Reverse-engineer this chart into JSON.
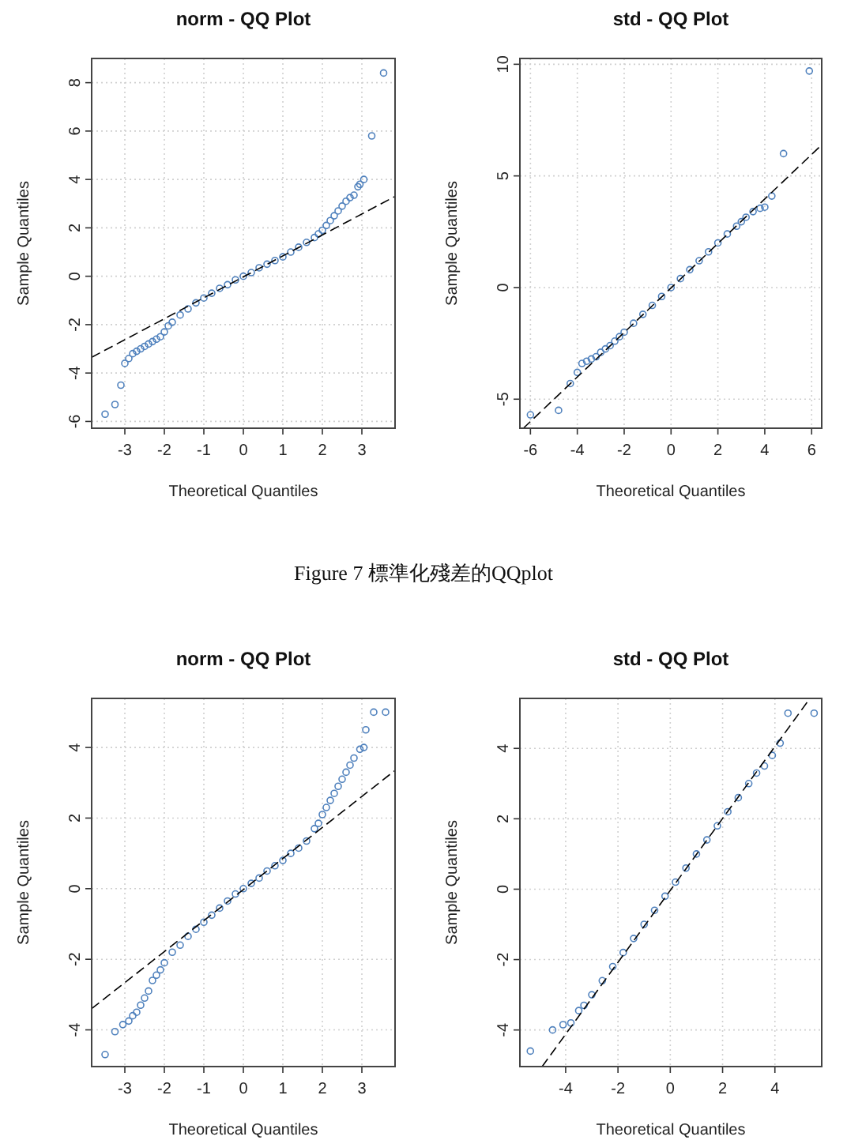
{
  "chart_data": [
    {
      "type": "scatter",
      "title": "norm - QQ Plot",
      "xlabel": "Theoretical Quantiles",
      "ylabel": "Sample Quantiles",
      "xlim": [
        -3.84,
        3.84
      ],
      "ylim": [
        -6.28,
        9.0
      ],
      "xticks": [
        -3,
        -2,
        -1,
        0,
        1,
        2,
        3
      ],
      "yticks": [
        -6,
        -4,
        -2,
        0,
        2,
        4,
        6,
        8
      ],
      "grid": true,
      "marker": "circle",
      "annotations": [
        "Figure 7 標準化殘差的QQplot"
      ],
      "series": [
        {
          "type": "scatter",
          "color": "#4f81bd",
          "x": [
            -3.5,
            -3.25,
            -3.1,
            -3.0,
            -2.9,
            -2.8,
            -2.7,
            -2.6,
            -2.5,
            -2.4,
            -2.3,
            -2.2,
            -2.1,
            -2.0,
            -1.9,
            -1.8,
            -1.6,
            -1.4,
            -1.2,
            -1.0,
            -0.8,
            -0.6,
            -0.4,
            -0.2,
            0,
            0.2,
            0.4,
            0.6,
            0.8,
            1.0,
            1.2,
            1.4,
            1.6,
            1.8,
            1.9,
            2.0,
            2.1,
            2.2,
            2.3,
            2.4,
            2.5,
            2.6,
            2.7,
            2.8,
            2.9,
            2.95,
            3.05,
            3.25,
            3.55
          ],
          "values": [
            -5.7,
            -5.3,
            -4.5,
            -3.6,
            -3.4,
            -3.2,
            -3.1,
            -3.0,
            -2.9,
            -2.8,
            -2.7,
            -2.6,
            -2.5,
            -2.3,
            -2.05,
            -1.9,
            -1.6,
            -1.35,
            -1.1,
            -0.9,
            -0.7,
            -0.5,
            -0.35,
            -0.15,
            0,
            0.15,
            0.35,
            0.5,
            0.65,
            0.8,
            1.0,
            1.2,
            1.4,
            1.6,
            1.75,
            1.9,
            2.1,
            2.3,
            2.5,
            2.7,
            2.9,
            3.1,
            3.25,
            3.35,
            3.7,
            3.8,
            4.0,
            5.8,
            8.4
          ]
        },
        {
          "type": "line",
          "color": "#000000",
          "line_style": "dashed",
          "marker": "none",
          "x": [
            -3.84,
            3.84
          ],
          "values": [
            -3.35,
            3.3
          ]
        }
      ]
    },
    {
      "type": "scatter",
      "title": "std - QQ Plot",
      "xlabel": "Theoretical Quantiles",
      "ylabel": "Sample Quantiles",
      "xlim": [
        -6.45,
        6.43
      ],
      "ylim": [
        -6.3,
        10.26
      ],
      "xticks": [
        -6,
        -4,
        -2,
        0,
        2,
        4,
        6
      ],
      "yticks": [
        -5,
        0,
        5,
        10
      ],
      "grid": true,
      "marker": "circle",
      "series": [
        {
          "type": "scatter",
          "color": "#4f81bd",
          "x": [
            -6.0,
            -4.8,
            -4.3,
            -4.0,
            -3.8,
            -3.6,
            -3.4,
            -3.2,
            -3.0,
            -2.8,
            -2.6,
            -2.4,
            -2.2,
            -2.0,
            -1.6,
            -1.2,
            -0.8,
            -0.4,
            0,
            0.4,
            0.8,
            1.2,
            1.6,
            2.0,
            2.4,
            2.8,
            3.0,
            3.2,
            3.5,
            3.8,
            4.0,
            4.3,
            4.8,
            5.9
          ],
          "values": [
            -5.7,
            -5.5,
            -4.3,
            -3.8,
            -3.4,
            -3.3,
            -3.2,
            -3.1,
            -2.9,
            -2.75,
            -2.6,
            -2.4,
            -2.2,
            -2.0,
            -1.6,
            -1.2,
            -0.8,
            -0.4,
            0,
            0.4,
            0.8,
            1.2,
            1.6,
            2.0,
            2.4,
            2.75,
            2.95,
            3.15,
            3.4,
            3.55,
            3.6,
            4.1,
            6.0,
            9.7
          ]
        },
        {
          "type": "line",
          "color": "#000000",
          "line_style": "dashed",
          "marker": "none",
          "x": [
            -6.3,
            6.43
          ],
          "values": [
            -6.3,
            6.39
          ]
        }
      ]
    },
    {
      "type": "scatter",
      "title": "norm - QQ Plot",
      "xlabel": "Theoretical Quantiles",
      "ylabel": "Sample Quantiles",
      "xlim": [
        -3.84,
        3.84
      ],
      "ylim": [
        -5.04,
        5.39
      ],
      "xticks": [
        -3,
        -2,
        -1,
        0,
        1,
        2,
        3
      ],
      "yticks": [
        -4,
        -2,
        0,
        2,
        4
      ],
      "grid": true,
      "marker": "circle",
      "series": [
        {
          "type": "scatter",
          "color": "#4f81bd",
          "x": [
            -3.5,
            -3.25,
            -3.05,
            -2.9,
            -2.8,
            -2.7,
            -2.6,
            -2.5,
            -2.4,
            -2.3,
            -2.2,
            -2.1,
            -2.0,
            -1.8,
            -1.6,
            -1.4,
            -1.2,
            -1.0,
            -0.8,
            -0.6,
            -0.4,
            -0.2,
            0,
            0.2,
            0.4,
            0.6,
            0.8,
            1.0,
            1.2,
            1.4,
            1.6,
            1.8,
            1.9,
            2.0,
            2.1,
            2.2,
            2.3,
            2.4,
            2.5,
            2.6,
            2.7,
            2.8,
            2.95,
            3.05,
            3.1,
            3.3,
            3.6
          ],
          "values": [
            -4.7,
            -4.05,
            -3.85,
            -3.75,
            -3.6,
            -3.5,
            -3.3,
            -3.1,
            -2.9,
            -2.6,
            -2.45,
            -2.3,
            -2.1,
            -1.8,
            -1.6,
            -1.35,
            -1.15,
            -0.95,
            -0.75,
            -0.55,
            -0.35,
            -0.15,
            0,
            0.15,
            0.3,
            0.5,
            0.65,
            0.8,
            1.0,
            1.15,
            1.35,
            1.7,
            1.85,
            2.1,
            2.3,
            2.5,
            2.7,
            2.9,
            3.1,
            3.3,
            3.5,
            3.7,
            3.95,
            4.0,
            4.5,
            5.0,
            5.0
          ]
        },
        {
          "type": "line",
          "color": "#000000",
          "line_style": "dashed",
          "marker": "none",
          "x": [
            -3.84,
            3.84
          ],
          "values": [
            -3.4,
            3.35
          ]
        }
      ]
    },
    {
      "type": "scatter",
      "title": "std - QQ Plot",
      "xlabel": "Theoretical Quantiles",
      "ylabel": "Sample Quantiles",
      "xlim": [
        -5.75,
        5.79
      ],
      "ylim": [
        -5.04,
        5.42
      ],
      "xticks": [
        -4,
        -2,
        0,
        2,
        4
      ],
      "yticks": [
        -4,
        -2,
        0,
        2,
        4
      ],
      "grid": true,
      "marker": "circle",
      "series": [
        {
          "type": "scatter",
          "color": "#4f81bd",
          "x": [
            -5.35,
            -4.5,
            -4.1,
            -3.8,
            -3.5,
            -3.3,
            -3.0,
            -2.6,
            -2.2,
            -1.8,
            -1.4,
            -1.0,
            -0.6,
            -0.2,
            0.2,
            0.6,
            1.0,
            1.4,
            1.8,
            2.2,
            2.6,
            3.0,
            3.3,
            3.6,
            3.9,
            4.2,
            4.5,
            5.5
          ],
          "values": [
            -4.6,
            -4.0,
            -3.85,
            -3.8,
            -3.45,
            -3.3,
            -3.0,
            -2.6,
            -2.2,
            -1.8,
            -1.4,
            -1.0,
            -0.6,
            -0.2,
            0.2,
            0.6,
            1.0,
            1.4,
            1.8,
            2.2,
            2.6,
            3.0,
            3.3,
            3.5,
            3.8,
            4.15,
            5.0,
            5.0
          ]
        },
        {
          "type": "line",
          "color": "#000000",
          "line_style": "dashed",
          "marker": "none",
          "x": [
            -4.9,
            5.34
          ],
          "values": [
            -5.04,
            5.42
          ]
        }
      ]
    }
  ]
}
